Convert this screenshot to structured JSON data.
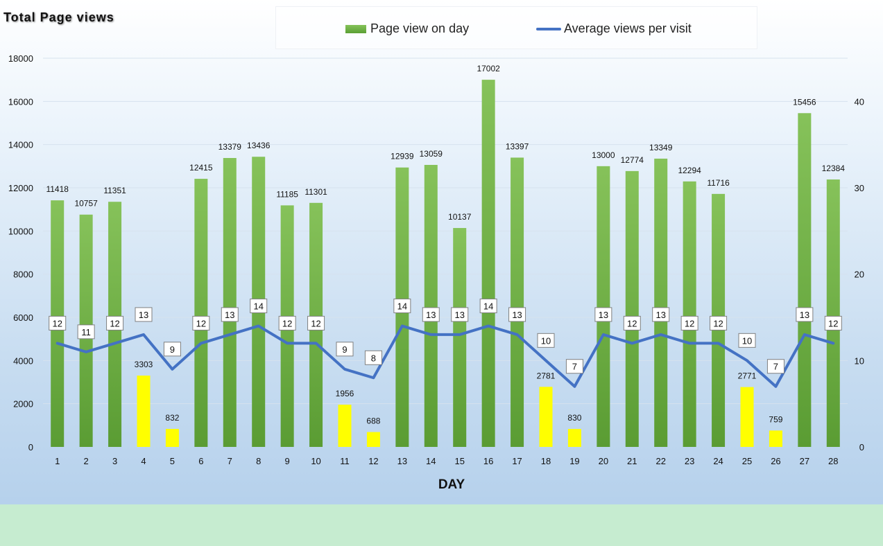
{
  "title": "Total Page views",
  "legend": {
    "bars": "Page view on day",
    "line": "Average views per visit"
  },
  "colors": {
    "bar_high": "#70ad47",
    "bar_low": "#ffff00",
    "line": "#4472c4"
  },
  "chart_data": {
    "type": "bar",
    "title": "Total Page views",
    "xlabel": "DAY",
    "ylabel": "",
    "ylim": [
      0,
      18000
    ],
    "y2lim": [
      0,
      45
    ],
    "y_ticks": [
      0,
      2000,
      4000,
      6000,
      8000,
      10000,
      12000,
      14000,
      16000,
      18000
    ],
    "y2_ticks": [
      0,
      10,
      20,
      30,
      40
    ],
    "grid": true,
    "legend_position": "top",
    "categories": [
      "1",
      "2",
      "3",
      "4",
      "5",
      "6",
      "7",
      "8",
      "9",
      "10",
      "11",
      "12",
      "13",
      "14",
      "15",
      "16",
      "17",
      "18",
      "19",
      "20",
      "21",
      "22",
      "23",
      "24",
      "25",
      "26",
      "27",
      "28"
    ],
    "series": [
      {
        "name": "Page view on day",
        "type": "bar",
        "values": [
          11418,
          10757,
          11351,
          3303,
          832,
          12415,
          13379,
          13436,
          11185,
          11301,
          1956,
          688,
          12939,
          13059,
          10137,
          17002,
          13397,
          2781,
          830,
          13000,
          12774,
          13349,
          12294,
          11716,
          2771,
          759,
          15456,
          12384
        ]
      },
      {
        "name": "Average views per visit",
        "type": "line",
        "axis": "secondary",
        "values": [
          12,
          11,
          12,
          13,
          9,
          12,
          13,
          14,
          12,
          12,
          9,
          8,
          14,
          13,
          13,
          14,
          13,
          10,
          7,
          13,
          12,
          13,
          12,
          12,
          10,
          7,
          13,
          12
        ]
      }
    ]
  }
}
